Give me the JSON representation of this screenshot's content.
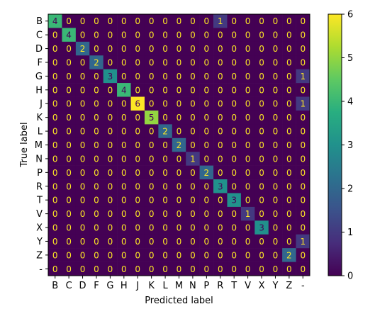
{
  "chart_data": {
    "type": "heatmap",
    "title": "",
    "xlabel": "Predicted label",
    "ylabel": "True label",
    "x_labels": [
      "B",
      "C",
      "D",
      "F",
      "G",
      "H",
      "J",
      "K",
      "L",
      "M",
      "N",
      "P",
      "R",
      "T",
      "V",
      "X",
      "Y",
      "Z",
      "-"
    ],
    "y_labels": [
      "B",
      "C",
      "D",
      "F",
      "G",
      "H",
      "J",
      "K",
      "L",
      "M",
      "N",
      "P",
      "R",
      "T",
      "V",
      "X",
      "Y",
      "Z",
      "-"
    ],
    "matrix": [
      [
        4,
        0,
        0,
        0,
        0,
        0,
        0,
        0,
        0,
        0,
        0,
        0,
        1,
        0,
        0,
        0,
        0,
        0,
        0
      ],
      [
        0,
        4,
        0,
        0,
        0,
        0,
        0,
        0,
        0,
        0,
        0,
        0,
        0,
        0,
        0,
        0,
        0,
        0,
        0
      ],
      [
        0,
        0,
        2,
        0,
        0,
        0,
        0,
        0,
        0,
        0,
        0,
        0,
        0,
        0,
        0,
        0,
        0,
        0,
        0
      ],
      [
        0,
        0,
        0,
        2,
        0,
        0,
        0,
        0,
        0,
        0,
        0,
        0,
        0,
        0,
        0,
        0,
        0,
        0,
        0
      ],
      [
        0,
        0,
        0,
        0,
        3,
        0,
        0,
        0,
        0,
        0,
        0,
        0,
        0,
        0,
        0,
        0,
        0,
        0,
        1
      ],
      [
        0,
        0,
        0,
        0,
        0,
        4,
        0,
        0,
        0,
        0,
        0,
        0,
        0,
        0,
        0,
        0,
        0,
        0,
        0
      ],
      [
        0,
        0,
        0,
        0,
        0,
        0,
        6,
        0,
        0,
        0,
        0,
        0,
        0,
        0,
        0,
        0,
        0,
        0,
        1
      ],
      [
        0,
        0,
        0,
        0,
        0,
        0,
        0,
        5,
        0,
        0,
        0,
        0,
        0,
        0,
        0,
        0,
        0,
        0,
        0
      ],
      [
        0,
        0,
        0,
        0,
        0,
        0,
        0,
        0,
        2,
        0,
        0,
        0,
        0,
        0,
        0,
        0,
        0,
        0,
        0
      ],
      [
        0,
        0,
        0,
        0,
        0,
        0,
        0,
        0,
        0,
        2,
        0,
        0,
        0,
        0,
        0,
        0,
        0,
        0,
        0
      ],
      [
        0,
        0,
        0,
        0,
        0,
        0,
        0,
        0,
        0,
        0,
        1,
        0,
        0,
        0,
        0,
        0,
        0,
        0,
        0
      ],
      [
        0,
        0,
        0,
        0,
        0,
        0,
        0,
        0,
        0,
        0,
        0,
        2,
        0,
        0,
        0,
        0,
        0,
        0,
        0
      ],
      [
        0,
        0,
        0,
        0,
        0,
        0,
        0,
        0,
        0,
        0,
        0,
        0,
        3,
        0,
        0,
        0,
        0,
        0,
        0
      ],
      [
        0,
        0,
        0,
        0,
        0,
        0,
        0,
        0,
        0,
        0,
        0,
        0,
        0,
        3,
        0,
        0,
        0,
        0,
        0
      ],
      [
        0,
        0,
        0,
        0,
        0,
        0,
        0,
        0,
        0,
        0,
        0,
        0,
        0,
        0,
        1,
        0,
        0,
        0,
        0
      ],
      [
        0,
        0,
        0,
        0,
        0,
        0,
        0,
        0,
        0,
        0,
        0,
        0,
        0,
        0,
        0,
        3,
        0,
        0,
        0
      ],
      [
        0,
        0,
        0,
        0,
        0,
        0,
        0,
        0,
        0,
        0,
        0,
        0,
        0,
        0,
        0,
        0,
        0,
        0,
        1
      ],
      [
        0,
        0,
        0,
        0,
        0,
        0,
        0,
        0,
        0,
        0,
        0,
        0,
        0,
        0,
        0,
        0,
        0,
        2,
        0
      ],
      [
        0,
        0,
        0,
        0,
        0,
        0,
        0,
        0,
        0,
        0,
        0,
        0,
        0,
        0,
        0,
        0,
        0,
        0,
        0
      ]
    ],
    "vmin": 0,
    "vmax": 6,
    "colormap": "viridis",
    "colorbar_ticks": [
      0,
      1,
      2,
      3,
      4,
      5,
      6
    ],
    "text_color_dark_cells": "#fde725",
    "text_color_light_cells": "#440154",
    "grid": false,
    "legend": "colorbar-right"
  }
}
